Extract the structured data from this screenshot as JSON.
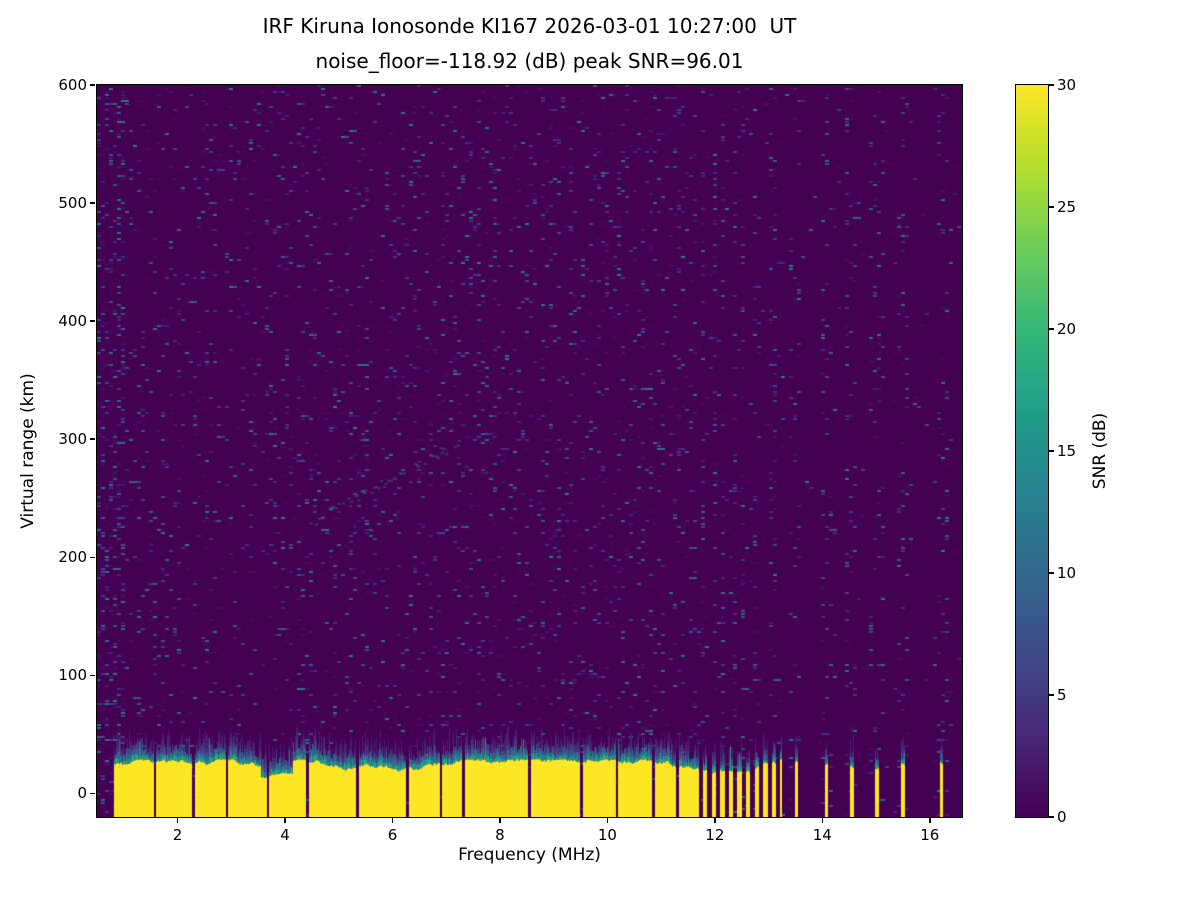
{
  "figure": {
    "title_line1": "IRF Kiruna Ionosonde KI167 2026-03-01 10:27:00  UT",
    "title_line2": "noise_floor=-118.92 (dB) peak SNR=96.01"
  },
  "chart_data": {
    "type": "heatmap",
    "title": "IRF Kiruna Ionosonde KI167 2026-03-01 10:27:00  UT",
    "subtitle": "noise_floor=-118.92 (dB) peak SNR=96.01",
    "station": "IRF Kiruna Ionosonde KI167",
    "timestamp_ut": "2026-03-01 10:27:00",
    "noise_floor_db": -118.92,
    "peak_snr_db": 96.01,
    "xlabel": "Frequency (MHz)",
    "ylabel": "Virtual range (km)",
    "xlim": [
      0.5,
      16.6
    ],
    "ylim": [
      -20,
      600
    ],
    "x_ticks": [
      2,
      4,
      6,
      8,
      10,
      12,
      14,
      16
    ],
    "y_ticks": [
      0,
      100,
      200,
      300,
      400,
      500,
      600
    ],
    "colorbar": {
      "label": "SNR (dB)",
      "range": [
        0,
        30
      ],
      "ticks": [
        0,
        5,
        10,
        15,
        20,
        25,
        30
      ],
      "colormap": "viridis"
    },
    "features": {
      "rng_seed": 42,
      "background_snr_db": 0,
      "noise_speckle_density": 0.07,
      "noise_speckle_snr_range_db": [
        1,
        12
      ],
      "ground_echo": {
        "freq_start_mhz": 0.82,
        "freq_end_mhz": 11.62,
        "top_km_mean": 23,
        "top_km_jitter": 6,
        "snr_db": 30
      },
      "band_dip": {
        "freq_start_mhz": 3.55,
        "freq_end_mhz": 4.15,
        "top_scale": 0.6
      },
      "band_notches_mhz": [
        1.58,
        2.3,
        2.92,
        3.68,
        4.42,
        5.35,
        6.28,
        6.9,
        7.32,
        8.55,
        9.52,
        10.18,
        10.86,
        11.3
      ],
      "striped_region": {
        "freq_start_mhz": 11.62,
        "freq_end_mhz": 13.25,
        "period_mhz": 0.16,
        "duty": 0.5
      },
      "sparse_echo_columns_mhz": [
        13.52,
        14.08,
        14.55,
        15.02,
        15.5,
        16.22
      ],
      "faint_trace": {
        "freq_start_mhz": 4.4,
        "freq_end_mhz": 7.3,
        "km_start": 228,
        "km_end": 300
      }
    }
  }
}
